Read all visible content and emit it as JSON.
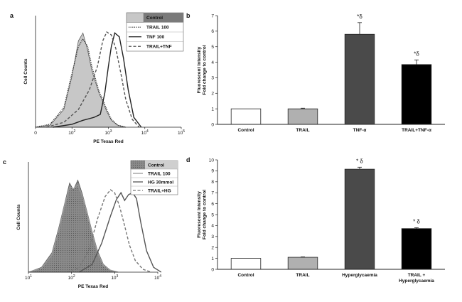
{
  "panels": [
    {
      "label": "a",
      "chart_data": {
        "type": "line",
        "xlabel": "PE Texas Red",
        "ylabel": "Cell Counts",
        "x_scale": "log",
        "x_ticks": [
          "0",
          "10^2",
          "10^3",
          "10^4",
          "10^5"
        ],
        "x_tick_values": [
          10,
          100,
          1000,
          10000,
          100000
        ],
        "grid": false,
        "legend_position": "top-right",
        "series": [
          {
            "name": "Control",
            "style": "filled",
            "color": "#c7c7c7",
            "x": [
              10,
              25,
              60,
              100,
              150,
              200,
              270,
              350,
              450,
              560,
              700,
              900,
              1200,
              1800,
              3000
            ],
            "y": [
              0.0,
              0.02,
              0.18,
              0.52,
              0.88,
              0.96,
              0.78,
              0.58,
              0.45,
              0.34,
              0.26,
              0.16,
              0.07,
              0.02,
              0.0
            ]
          },
          {
            "name": "TRAIL 100",
            "style": "dotted",
            "color": "#333333",
            "x": [
              10,
              25,
              60,
              100,
              150,
              200,
              270,
              350,
              450,
              560,
              700,
              900,
              1200,
              1800,
              3000
            ],
            "y": [
              0.0,
              0.03,
              0.2,
              0.55,
              0.82,
              0.9,
              0.82,
              0.62,
              0.48,
              0.36,
              0.28,
              0.18,
              0.08,
              0.02,
              0.0
            ]
          },
          {
            "name": "TNF 100",
            "style": "solid",
            "color": "#222222",
            "x": [
              30,
              100,
              200,
              400,
              600,
              800,
              1000,
              1200,
              1500,
              2000,
              2600,
              3500,
              5000,
              8000
            ],
            "y": [
              0.0,
              0.03,
              0.07,
              0.1,
              0.13,
              0.35,
              0.62,
              0.82,
              0.96,
              0.92,
              0.7,
              0.38,
              0.1,
              0.0
            ]
          },
          {
            "name": "TRAIL+TNF",
            "style": "dashed",
            "color": "#555555",
            "x": [
              20,
              60,
              150,
              300,
              500,
              700,
              900,
              1200,
              1600,
              2200,
              3000,
              4500,
              7000
            ],
            "y": [
              0.0,
              0.05,
              0.18,
              0.38,
              0.62,
              0.88,
              0.97,
              0.94,
              0.8,
              0.55,
              0.28,
              0.08,
              0.0
            ]
          }
        ]
      }
    },
    {
      "label": "b",
      "chart_data": {
        "type": "bar",
        "xlabel": "",
        "ylabel": "Fluorescent Intensity\nFold change to control",
        "ylim": [
          0,
          7
        ],
        "y_ticks": [
          0,
          1,
          2,
          3,
          4,
          5,
          6,
          7
        ],
        "categories": [
          "Control",
          "TRAIL",
          "TNF-α",
          "TRAIL+TNF-α"
        ],
        "values": [
          1.0,
          1.0,
          5.8,
          3.85
        ],
        "errors": [
          0,
          0.04,
          0.75,
          0.3
        ],
        "colors": [
          "#ffffff",
          "#b0b0b0",
          "#4a4a4a",
          "#000000"
        ],
        "annotations": [
          "",
          "",
          "*δ",
          "*δ"
        ]
      }
    },
    {
      "label": "c",
      "chart_data": {
        "type": "line",
        "xlabel": "PE Texas Red",
        "ylabel": "Cell Counts",
        "x_scale": "log",
        "x_ticks": [
          "10^1",
          "10^2",
          "10^3",
          "10^4"
        ],
        "x_tick_values": [
          10,
          100,
          1000,
          10000
        ],
        "grid": false,
        "legend_position": "top-right",
        "series": [
          {
            "name": "Control",
            "style": "filled",
            "color": "#6a6a6a",
            "x": [
              10,
              20,
              35,
              50,
              70,
              90,
              110,
              140,
              180,
              230,
              300,
              400,
              550,
              800,
              1200
            ],
            "y": [
              0.0,
              0.05,
              0.2,
              0.45,
              0.72,
              0.92,
              0.85,
              0.95,
              0.8,
              0.62,
              0.42,
              0.22,
              0.08,
              0.02,
              0.0
            ]
          },
          {
            "name": "TRAIL 100",
            "style": "solid",
            "color": "#999999",
            "x": [
              10,
              20,
              35,
              50,
              70,
              90,
              110,
              140,
              180,
              230,
              300,
              400,
              550,
              800,
              1200
            ],
            "y": [
              0.0,
              0.04,
              0.18,
              0.42,
              0.7,
              0.88,
              0.86,
              0.9,
              0.78,
              0.6,
              0.4,
              0.2,
              0.07,
              0.02,
              0.0
            ]
          },
          {
            "name": "HG 30mmol",
            "style": "solid",
            "color": "#555555",
            "x": [
              150,
              300,
              500,
              800,
              1100,
              1400,
              1700,
              2100,
              2600,
              3200,
              4000,
              5500,
              8000,
              12000
            ],
            "y": [
              0.0,
              0.08,
              0.3,
              0.58,
              0.75,
              0.82,
              0.74,
              0.8,
              0.82,
              0.76,
              0.52,
              0.22,
              0.05,
              0.0
            ]
          },
          {
            "name": "TRAIL+HG",
            "style": "dashed",
            "color": "#777777",
            "x": [
              80,
              150,
              250,
              400,
              600,
              800,
              1000,
              1300,
              1700,
              2200,
              3000,
              4500,
              7000
            ],
            "y": [
              0.0,
              0.05,
              0.22,
              0.55,
              0.78,
              0.85,
              0.82,
              0.68,
              0.48,
              0.28,
              0.12,
              0.03,
              0.0
            ]
          }
        ]
      }
    },
    {
      "label": "d",
      "chart_data": {
        "type": "bar",
        "xlabel": "",
        "ylabel": "Fluorescent Intensity\nFold change to control",
        "ylim": [
          0,
          10
        ],
        "y_ticks": [
          0,
          1,
          2,
          3,
          4,
          5,
          6,
          7,
          8,
          9,
          10
        ],
        "categories": [
          "Control",
          "TRAIL",
          "Hyperglycaemia",
          "TRAIL +\nHyperglycaemia"
        ],
        "values": [
          1.0,
          1.1,
          9.15,
          3.72
        ],
        "errors": [
          0,
          0.04,
          0.18,
          0.08
        ],
        "colors": [
          "#ffffff",
          "#b0b0b0",
          "#4a4a4a",
          "#000000"
        ],
        "annotations": [
          "",
          "",
          "* δ",
          "* δ"
        ]
      }
    }
  ]
}
